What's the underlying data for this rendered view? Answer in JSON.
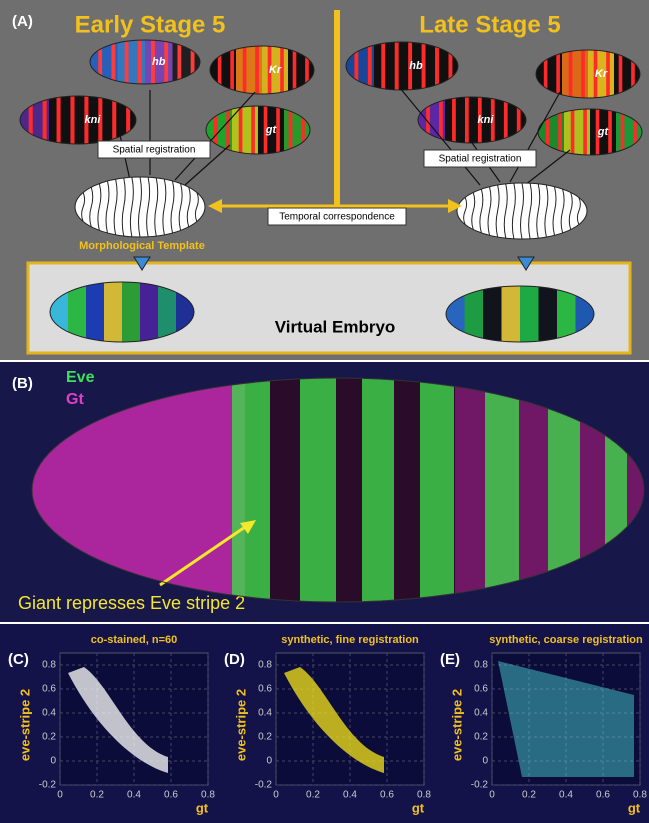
{
  "panel_a": {
    "label": "(A)",
    "early_title": "Early Stage 5",
    "late_title": "Late Stage 5",
    "genes": [
      "hb",
      "Kr",
      "kni",
      "gt"
    ],
    "spatial_registration": "Spatial registration",
    "temporal": "Temporal correspondence",
    "template": "Morphological Template",
    "virtual": "Virtual Embryo"
  },
  "panel_b": {
    "label": "(B)",
    "legend": [
      "Eve",
      "Gt"
    ],
    "annotation": "Giant represses Eve stripe 2"
  },
  "scatter_panels": [
    {
      "label": "(C)",
      "title": "co-stained, n=60"
    },
    {
      "label": "(D)",
      "title": "synthetic, fine registration"
    },
    {
      "label": "(E)",
      "title": "synthetic, coarse registration"
    }
  ],
  "scatter_axes": {
    "y_label": "eve-stripe 2",
    "x_label": "gt",
    "xlim": [
      0,
      0.8
    ],
    "ylim": [
      -0.2,
      0.8
    ],
    "xticks": [
      0,
      0.2,
      0.4,
      0.6,
      0.8
    ],
    "yticks": [
      -0.2,
      0,
      0.2,
      0.4,
      0.6,
      0.8
    ]
  }
}
